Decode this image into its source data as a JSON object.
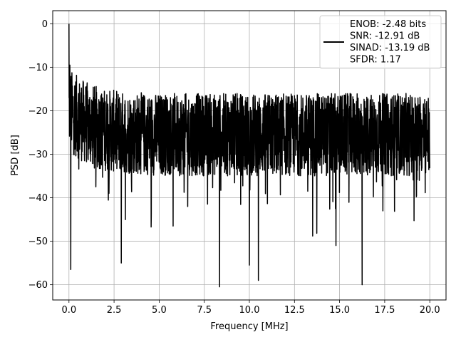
{
  "chart_data": {
    "type": "line",
    "xlabel": "Frequency [MHz]",
    "ylabel": "PSD [dB]",
    "xlim": [
      -0.9,
      20.9
    ],
    "ylim": [
      -63.5,
      3.0
    ],
    "x_ticks": [
      0.0,
      2.5,
      5.0,
      7.5,
      10.0,
      12.5,
      15.0,
      17.5,
      20.0
    ],
    "x_tick_labels": [
      "0.0",
      "2.5",
      "5.0",
      "7.5",
      "10.0",
      "12.5",
      "15.0",
      "17.5",
      "20.0"
    ],
    "y_ticks": [
      0,
      -10,
      -20,
      -30,
      -40,
      -50,
      -60
    ],
    "y_tick_labels": [
      "0",
      "−10",
      "−20",
      "−30",
      "−40",
      "−50",
      "−60"
    ],
    "grid": true,
    "legend_position": "top-right",
    "legend_lines": [
      "ENOB: -2.48 bits",
      "SNR: -12.91 dB",
      "SINAD: -13.19 dB",
      "SFDR: 1.17"
    ],
    "series_color": "#000000",
    "grid_color": "#b0b0b0",
    "x_range": [
      0.0,
      20.0
    ],
    "noise_floor_band": [
      -35,
      -16
    ],
    "peaks": [
      {
        "x": 0.0,
        "y": 0.0
      },
      {
        "x": 0.05,
        "y": -9.5
      },
      {
        "x": 0.1,
        "y": -56.5
      },
      {
        "x": 2.9,
        "y": -55.0
      },
      {
        "x": 8.35,
        "y": -60.5
      },
      {
        "x": 10.5,
        "y": -59.0
      },
      {
        "x": 16.25,
        "y": -60.0
      },
      {
        "x": 10.0,
        "y": -55.5
      },
      {
        "x": 14.8,
        "y": -51.0
      }
    ]
  }
}
